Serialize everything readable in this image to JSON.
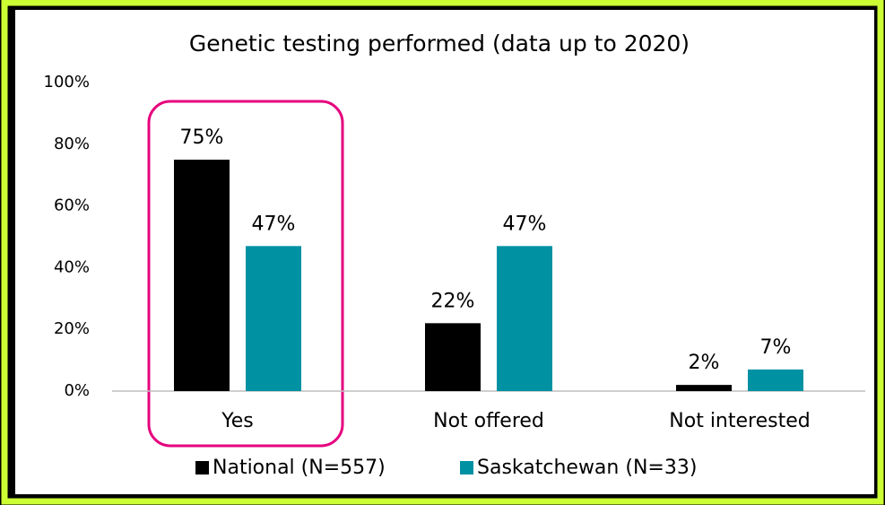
{
  "chart_data": {
    "type": "bar",
    "title": "Genetic testing performed (data up to 2020)",
    "categories": [
      "Yes",
      "Not offered",
      "Not interested"
    ],
    "series": [
      {
        "name": "National (N=557)",
        "color": "#000000",
        "values": [
          75,
          22,
          2
        ],
        "value_labels": [
          "75%",
          "22%",
          "2%"
        ]
      },
      {
        "name": "Saskatchewan (N=33)",
        "color": "#0091a3",
        "values": [
          47,
          47,
          7
        ],
        "value_labels": [
          "47%",
          "47%",
          "7%"
        ]
      }
    ],
    "ylim": [
      0,
      100
    ],
    "yticks": [
      {
        "value": 0,
        "label": "0%"
      },
      {
        "value": 20,
        "label": "20%"
      },
      {
        "value": 40,
        "label": "40%"
      },
      {
        "value": 60,
        "label": "60%"
      },
      {
        "value": 80,
        "label": "80%"
      },
      {
        "value": 100,
        "label": "100%"
      }
    ],
    "grid": false,
    "legend": "bottom"
  }
}
